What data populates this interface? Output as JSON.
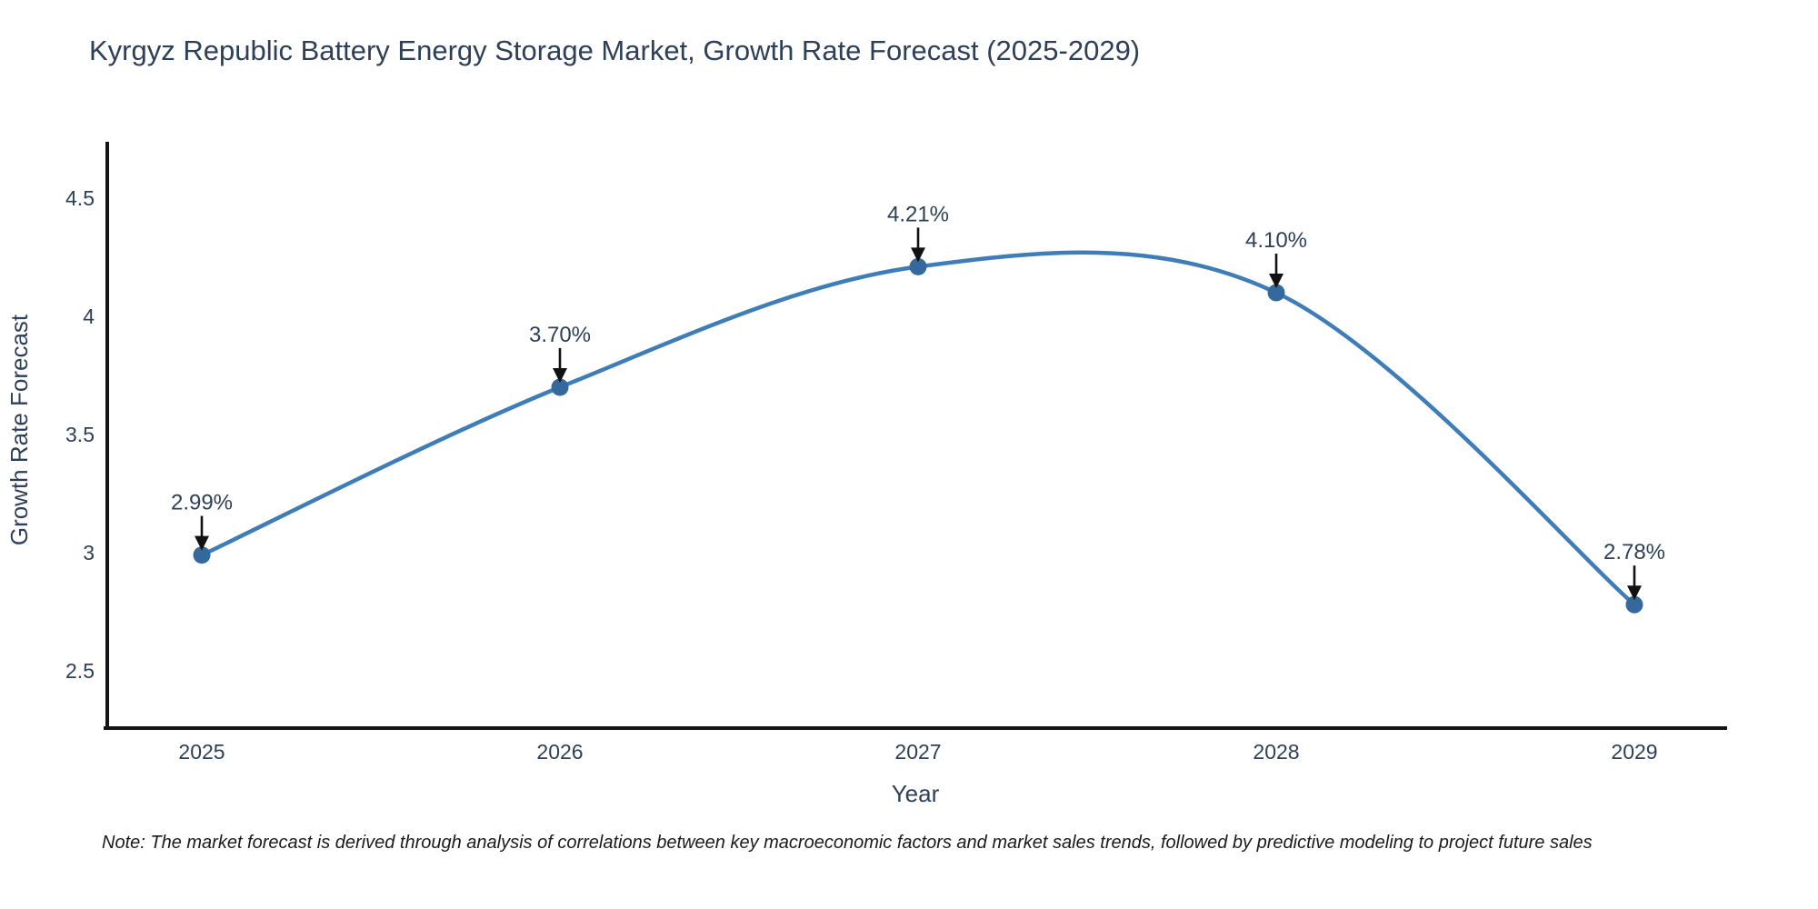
{
  "figure": {
    "note": "Note: The market forecast is derived through analysis of correlations between key macroeconomic factors and market sales trends, followed by predictive modeling to project future sales"
  },
  "chart_data": {
    "type": "line",
    "title": "Kyrgyz Republic Battery Energy Storage Market, Growth Rate Forecast (2025-2029)",
    "xlabel": "Year",
    "ylabel": "Growth Rate Forecast",
    "x": [
      2025,
      2026,
      2027,
      2028,
      2029
    ],
    "values": [
      2.99,
      3.7,
      4.21,
      4.1,
      2.78
    ],
    "point_labels": [
      "2.99%",
      "3.70%",
      "4.21%",
      "4.10%",
      "2.78%"
    ],
    "yticks": [
      4.5,
      4,
      3.5,
      3,
      2.5
    ],
    "ylim": [
      2.26,
      4.72
    ],
    "xlim": [
      2024.74,
      2029.26
    ],
    "grid": false,
    "legend": "none",
    "line_shape": "spline",
    "colors": {
      "line": "#3f7db8",
      "marker": "#35689c",
      "axis": "#141414",
      "text": "#2e4057",
      "annotation_arrow": "#111111",
      "note_text": "#1b1b1b",
      "background": "#ffffff"
    }
  }
}
